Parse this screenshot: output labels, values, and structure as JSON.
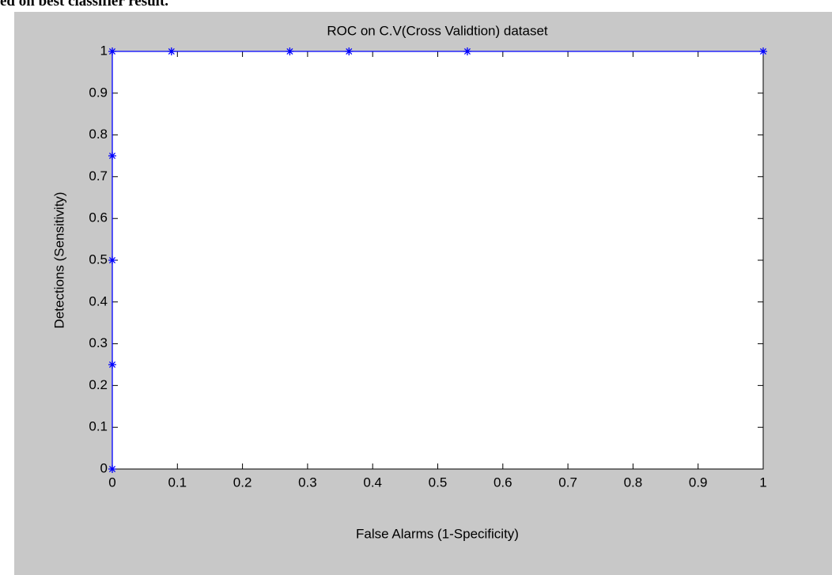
{
  "header": "ed on best classifier result.",
  "chart_data": {
    "type": "line",
    "title": "ROC on C.V(Cross Validtion) dataset",
    "x_label": "False Alarms (1-Specificity)",
    "y_label": "Detections (Sensitivity)",
    "series": [
      {
        "color": "#0000ff",
        "x": [
          0,
          0,
          0,
          0,
          0,
          0.0909,
          0.2727,
          0.3636,
          0.5455,
          1
        ],
        "values": [
          0,
          0.25,
          0.5,
          0.75,
          1,
          1,
          1,
          1,
          1,
          1
        ]
      }
    ],
    "xlim": [
      0,
      1
    ],
    "ylim": [
      0,
      1
    ],
    "xticks": [
      0,
      0.1,
      0.2,
      0.3,
      0.4,
      0.5,
      0.6,
      0.7,
      0.8,
      0.9,
      1
    ],
    "yticks": [
      0,
      0.1,
      0.2,
      0.3,
      0.4,
      0.5,
      0.6,
      0.7,
      0.8,
      0.9,
      1
    ],
    "grid": false
  }
}
